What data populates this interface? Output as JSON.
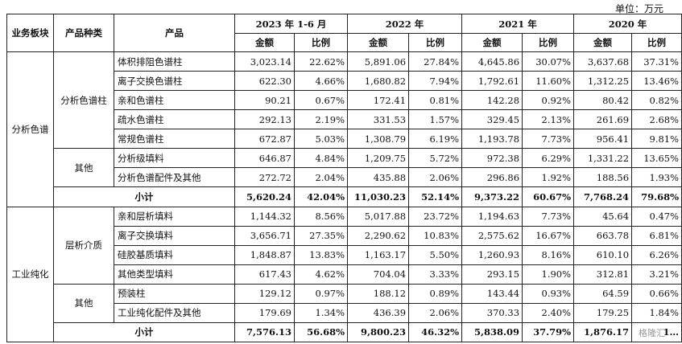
{
  "unit_label": "单位：万元",
  "headers": {
    "segment": "业务板块",
    "category": "产品种类",
    "product": "产品",
    "periods": [
      "2023 年 1-6 月",
      "2022 年",
      "2021 年",
      "2020 年"
    ],
    "amount": "金额",
    "ratio": "比例"
  },
  "groups": [
    {
      "segment": "分析色谱",
      "categories": [
        {
          "name": "分析色谱柱",
          "rows": [
            {
              "product": "体积排阻色谱柱",
              "values": [
                "3,023.14",
                "22.62%",
                "5,891.06",
                "27.84%",
                "4,645.86",
                "30.07%",
                "3,637.68",
                "37.31%"
              ]
            },
            {
              "product": "离子交换色谱柱",
              "values": [
                "622.30",
                "4.66%",
                "1,680.82",
                "7.94%",
                "1,792.61",
                "11.60%",
                "1,312.25",
                "13.46%"
              ]
            },
            {
              "product": "亲和色谱柱",
              "values": [
                "90.21",
                "0.67%",
                "172.41",
                "0.81%",
                "142.28",
                "0.92%",
                "80.42",
                "0.82%"
              ]
            },
            {
              "product": "疏水色谱柱",
              "values": [
                "292.13",
                "2.19%",
                "331.53",
                "1.57%",
                "329.45",
                "2.13%",
                "261.69",
                "2.68%"
              ]
            },
            {
              "product": "常规色谱柱",
              "values": [
                "672.87",
                "5.03%",
                "1,308.79",
                "6.19%",
                "1,193.78",
                "7.73%",
                "956.41",
                "9.81%"
              ]
            }
          ]
        },
        {
          "name": "其他",
          "rows": [
            {
              "product": "分析级填料",
              "values": [
                "646.87",
                "4.84%",
                "1,209.75",
                "5.72%",
                "972.38",
                "6.29%",
                "1,331.22",
                "13.65%"
              ]
            },
            {
              "product": "分析色谱配件及其他",
              "values": [
                "272.72",
                "2.04%",
                "435.88",
                "2.06%",
                "296.86",
                "1.92%",
                "188.56",
                "1.93%"
              ]
            }
          ]
        }
      ],
      "subtotal": {
        "label": "小计",
        "values": [
          "5,620.24",
          "42.04%",
          "11,030.23",
          "52.14%",
          "9,373.22",
          "60.67%",
          "7,768.24",
          "79.68%"
        ]
      }
    },
    {
      "segment": "工业纯化",
      "categories": [
        {
          "name": "层析介质",
          "rows": [
            {
              "product": "亲和层析填料",
              "values": [
                "1,144.32",
                "8.56%",
                "5,017.88",
                "23.72%",
                "1,194.63",
                "7.73%",
                "45.64",
                "0.47%"
              ]
            },
            {
              "product": "离子交换填料",
              "values": [
                "3,656.71",
                "27.35%",
                "2,290.62",
                "10.83%",
                "2,575.62",
                "16.67%",
                "663.78",
                "6.81%"
              ]
            },
            {
              "product": "硅胶基质填料",
              "values": [
                "1,848.87",
                "13.83%",
                "1,163.17",
                "5.50%",
                "1,260.93",
                "8.16%",
                "610.10",
                "6.26%"
              ]
            },
            {
              "product": "其他类型填料",
              "values": [
                "617.43",
                "4.62%",
                "704.04",
                "3.33%",
                "293.15",
                "1.90%",
                "312.81",
                "3.21%"
              ]
            }
          ]
        },
        {
          "name": "其他",
          "rows": [
            {
              "product": "预装柱",
              "values": [
                "129.12",
                "0.97%",
                "188.12",
                "0.89%",
                "143.44",
                "0.93%",
                "64.59",
                "0.66%"
              ]
            },
            {
              "product": "工业纯化配件及其他",
              "values": [
                "179.69",
                "1.34%",
                "436.39",
                "2.06%",
                "370.33",
                "2.40%",
                "179.25",
                "1.84%"
              ]
            }
          ]
        }
      ],
      "subtotal": {
        "label": "小计",
        "values": [
          "7,576.13",
          "56.68%",
          "9,800.23",
          "46.32%",
          "5,838.09",
          "37.79%",
          "1,876.17",
          "1…"
        ]
      }
    }
  ],
  "watermark": "格隆汇"
}
